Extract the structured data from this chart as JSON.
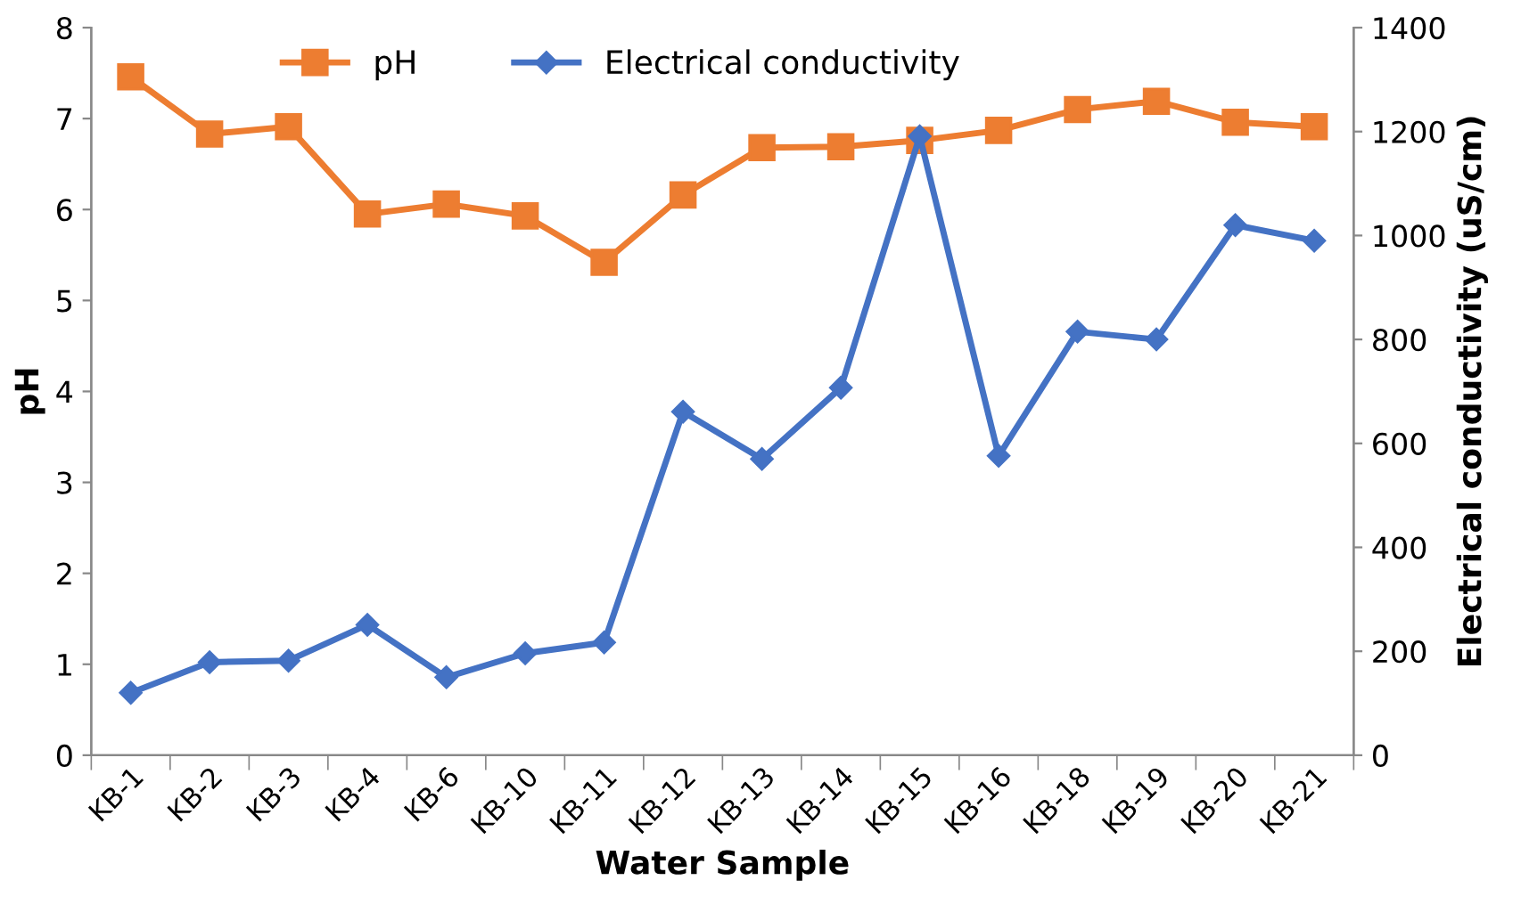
{
  "chart_data": {
    "type": "line",
    "xlabel": "Water Sample",
    "ylabel": "pH",
    "y2label": "Electrical conductivity (uS/cm)",
    "categories": [
      "KB-1",
      "KB-2",
      "KB-3",
      "KB-4",
      "KB-6",
      "KB-10",
      "KB-11",
      "KB-12",
      "KB-13",
      "KB-14",
      "KB-15",
      "KB-16",
      "KB-18",
      "KB-19",
      "KB-20",
      "KB-21"
    ],
    "series": [
      {
        "name": "pH",
        "color": "#ed7d31",
        "marker": "square",
        "values": [
          7.46,
          6.83,
          6.91,
          5.95,
          6.06,
          5.93,
          5.42,
          6.16,
          6.68,
          6.69,
          6.76,
          6.87,
          7.1,
          7.19,
          6.96,
          6.91
        ]
      },
      {
        "name": "Electrical conductivity",
        "color": "#4472c4",
        "marker": "diamond",
        "axis": "y2",
        "values": [
          120,
          179,
          182,
          251,
          150,
          196,
          217,
          661,
          570,
          707,
          1191,
          576,
          815,
          800,
          1020,
          990
        ]
      }
    ],
    "ylim": [
      0,
      8
    ],
    "yticks": [
      0,
      1,
      2,
      3,
      4,
      5,
      6,
      7,
      8
    ],
    "y2lim": [
      0,
      1400
    ],
    "y2ticks": [
      0,
      200,
      400,
      600,
      800,
      1000,
      1200,
      1400
    ],
    "grid": false,
    "legend": "top",
    "line_style": "solid"
  }
}
